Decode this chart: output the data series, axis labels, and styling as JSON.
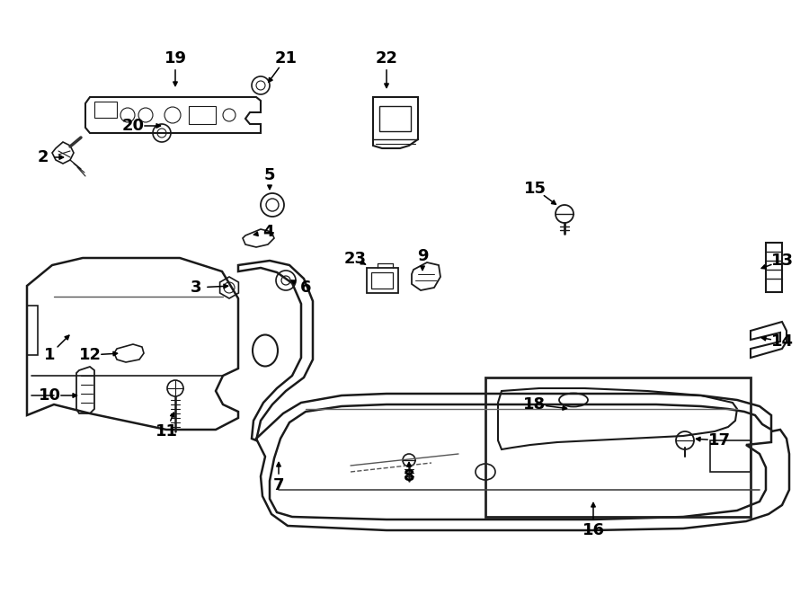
{
  "bg_color": "#ffffff",
  "line_color": "#1a1a1a",
  "fig_width": 9.0,
  "fig_height": 6.62,
  "label_data": [
    [
      "1",
      55,
      395,
      80,
      370
    ],
    [
      "2",
      48,
      175,
      75,
      175
    ],
    [
      "3",
      218,
      320,
      258,
      318
    ],
    [
      "4",
      298,
      258,
      278,
      262
    ],
    [
      "5",
      300,
      195,
      300,
      215
    ],
    [
      "6",
      340,
      320,
      320,
      310
    ],
    [
      "7",
      310,
      540,
      310,
      510
    ],
    [
      "8",
      455,
      530,
      455,
      510
    ],
    [
      "9",
      470,
      285,
      470,
      305
    ],
    [
      "10",
      55,
      440,
      90,
      440
    ],
    [
      "11",
      185,
      480,
      195,
      455
    ],
    [
      "12",
      100,
      395,
      135,
      393
    ],
    [
      "13",
      870,
      290,
      843,
      300
    ],
    [
      "14",
      870,
      380,
      843,
      375
    ],
    [
      "15",
      595,
      210,
      622,
      230
    ],
    [
      "16",
      660,
      590,
      660,
      555
    ],
    [
      "17",
      800,
      490,
      770,
      488
    ],
    [
      "18",
      595,
      450,
      635,
      455
    ],
    [
      "19",
      195,
      65,
      195,
      100
    ],
    [
      "20",
      148,
      140,
      183,
      140
    ],
    [
      "21",
      318,
      65,
      296,
      95
    ],
    [
      "22",
      430,
      65,
      430,
      102
    ],
    [
      "23",
      395,
      288,
      410,
      296
    ]
  ]
}
